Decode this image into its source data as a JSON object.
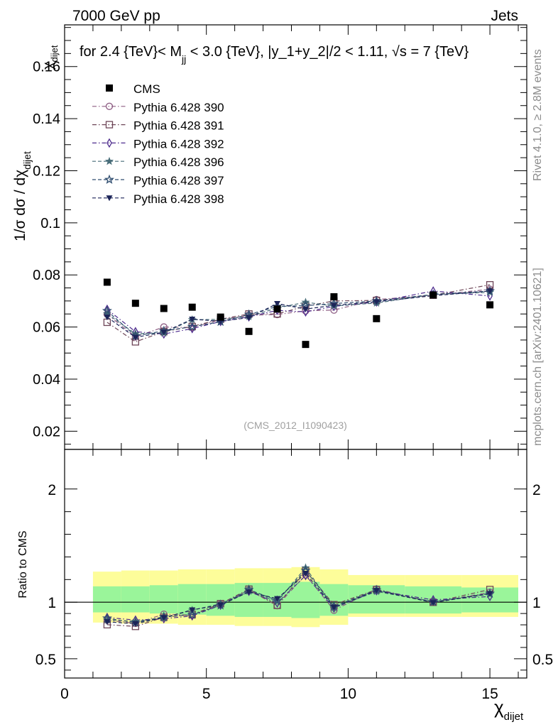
{
  "header": {
    "left": "7000 GeV pp",
    "right": "Jets"
  },
  "title": {
    "prefix": "for 2.4 {TeV}< M",
    "prefix_sub": "jj",
    "rest": " < 3.0 {TeV}, |y_1+y_2|/2 < 1.11, ",
    "sqrt": "√s",
    "suffix": " = 7 {TeV}"
  },
  "side_labels": {
    "rivet": "Rivet 4.1.0, ≥ 2.8M events",
    "mcplots": "mcplots.cern.ch [arXiv:2401.10621]"
  },
  "watermark": "(CMS_2012_I1090423)",
  "legend": {
    "cms": "CMS",
    "entries": [
      "Pythia 6.428 390",
      "Pythia 6.428 391",
      "Pythia 6.428 392",
      "Pythia 6.428 396",
      "Pythia 6.428 397",
      "Pythia 6.428 398"
    ]
  },
  "colors": {
    "data": "#000000",
    "p390": "#8e5e84",
    "p391": "#6e4658",
    "p392": "#4e2c8e",
    "p396": "#476c78",
    "p397": "#304e70",
    "p398": "#1c2458",
    "band_inner": "#9af59a",
    "band_outer": "#fdfd9a"
  },
  "chart_data": {
    "type": "scatter",
    "xlim": [
      0,
      16.3
    ],
    "main": {
      "ylim": [
        0.013,
        0.176
      ],
      "ytick_labels": [
        "0.02",
        "0.04",
        "0.06",
        "0.08",
        "0.1",
        "0.12",
        "0.14",
        "0.16"
      ],
      "ylabel": "1/σ dσ / dχ",
      "ylabel_sub": "dijet",
      "ylabel_top": "χ",
      "ylabel_top_sub": "dijet"
    },
    "ratio": {
      "ylim": [
        0.33,
        2.35
      ],
      "ytick_labels": [
        "0.5",
        "1",
        "2"
      ],
      "ylabel": "Ratio to CMS"
    },
    "xtick_labels": [
      "0",
      "5",
      "10",
      "15"
    ],
    "xlabel": "χ",
    "xlabel_sub": "dijet",
    "bin_edges": [
      1,
      2,
      3,
      4,
      5,
      6,
      7,
      8,
      9,
      10,
      12,
      14,
      16
    ],
    "x": [
      1.5,
      2.5,
      3.5,
      4.5,
      5.5,
      6.5,
      7.5,
      8.5,
      9.5,
      11,
      13,
      15
    ],
    "data": {
      "name": "CMS",
      "values": [
        0.0772,
        0.0691,
        0.0671,
        0.0676,
        0.0638,
        0.0583,
        0.0669,
        0.0533,
        0.0716,
        0.0632,
        0.0723,
        0.0685
      ],
      "band_inner_lo": [
        0.91,
        0.91,
        0.9,
        0.89,
        0.88,
        0.87,
        0.87,
        0.86,
        0.88,
        0.9,
        0.9,
        0.91
      ],
      "band_inner_hi": [
        1.14,
        1.14,
        1.15,
        1.16,
        1.16,
        1.17,
        1.17,
        1.18,
        1.16,
        1.15,
        1.14,
        1.13
      ],
      "band_outer_lo": [
        0.82,
        0.81,
        0.81,
        0.8,
        0.8,
        0.79,
        0.79,
        0.78,
        0.8,
        0.87,
        0.87,
        0.87
      ],
      "band_outer_hi": [
        1.27,
        1.28,
        1.28,
        1.29,
        1.29,
        1.3,
        1.3,
        1.31,
        1.29,
        1.24,
        1.24,
        1.24
      ]
    },
    "series": [
      {
        "name": "Pythia 6.428 390",
        "marker": "circle-open",
        "dash": "dashdot",
        "values": [
          0.0649,
          0.0562,
          0.06,
          0.0598,
          0.0628,
          0.0645,
          0.0648,
          0.0662,
          0.0665,
          0.0705,
          0.0722,
          0.0745
        ],
        "ratio": [
          0.841,
          0.813,
          0.894,
          0.885,
          0.984,
          1.106,
          0.969,
          1.242,
          0.929,
          1.116,
          0.999,
          1.088
        ]
      },
      {
        "name": "Pythia 6.428 391",
        "marker": "square-open",
        "dash": "dashdot",
        "values": [
          0.0618,
          0.0543,
          0.0582,
          0.0602,
          0.063,
          0.065,
          0.065,
          0.068,
          0.07,
          0.0702,
          0.0722,
          0.0762
        ],
        "ratio": [
          0.801,
          0.786,
          0.867,
          0.891,
          0.987,
          1.115,
          0.972,
          1.276,
          0.978,
          1.111,
          0.999,
          1.112
        ]
      },
      {
        "name": "Pythia 6.428 392",
        "marker": "diamond-open",
        "dash": "dashdot",
        "values": [
          0.0668,
          0.0582,
          0.0573,
          0.0594,
          0.0621,
          0.0639,
          0.0664,
          0.0658,
          0.0679,
          0.0696,
          0.0738,
          0.0719
        ],
        "ratio": [
          0.865,
          0.842,
          0.854,
          0.879,
          0.973,
          1.096,
          0.993,
          1.235,
          0.948,
          1.101,
          1.021,
          1.05
        ]
      },
      {
        "name": "Pythia 6.428 396",
        "marker": "star-filled",
        "dash": "dashed",
        "values": [
          0.0651,
          0.0574,
          0.0577,
          0.0628,
          0.0629,
          0.064,
          0.0673,
          0.0695,
          0.0681,
          0.0692,
          0.0725,
          0.0733
        ],
        "ratio": [
          0.843,
          0.831,
          0.86,
          0.929,
          0.986,
          1.098,
          1.006,
          1.304,
          0.951,
          1.095,
          1.003,
          1.07
        ]
      },
      {
        "name": "Pythia 6.428 397",
        "marker": "star-open",
        "dash": "dashed",
        "values": [
          0.0662,
          0.0566,
          0.0585,
          0.0601,
          0.062,
          0.0648,
          0.0679,
          0.0682,
          0.069,
          0.07,
          0.0725,
          0.0738
        ],
        "ratio": [
          0.858,
          0.819,
          0.872,
          0.889,
          0.972,
          1.111,
          1.015,
          1.28,
          0.964,
          1.108,
          1.003,
          1.077
        ]
      },
      {
        "name": "Pythia 6.428 398",
        "marker": "triangle-down-filled",
        "dash": "dashed",
        "values": [
          0.0638,
          0.056,
          0.058,
          0.063,
          0.0622,
          0.0636,
          0.069,
          0.0669,
          0.0683,
          0.0697,
          0.072,
          0.0738
        ],
        "ratio": [
          0.827,
          0.81,
          0.864,
          0.932,
          0.975,
          1.091,
          1.031,
          1.255,
          0.954,
          1.103,
          0.996,
          1.077
        ]
      }
    ]
  }
}
